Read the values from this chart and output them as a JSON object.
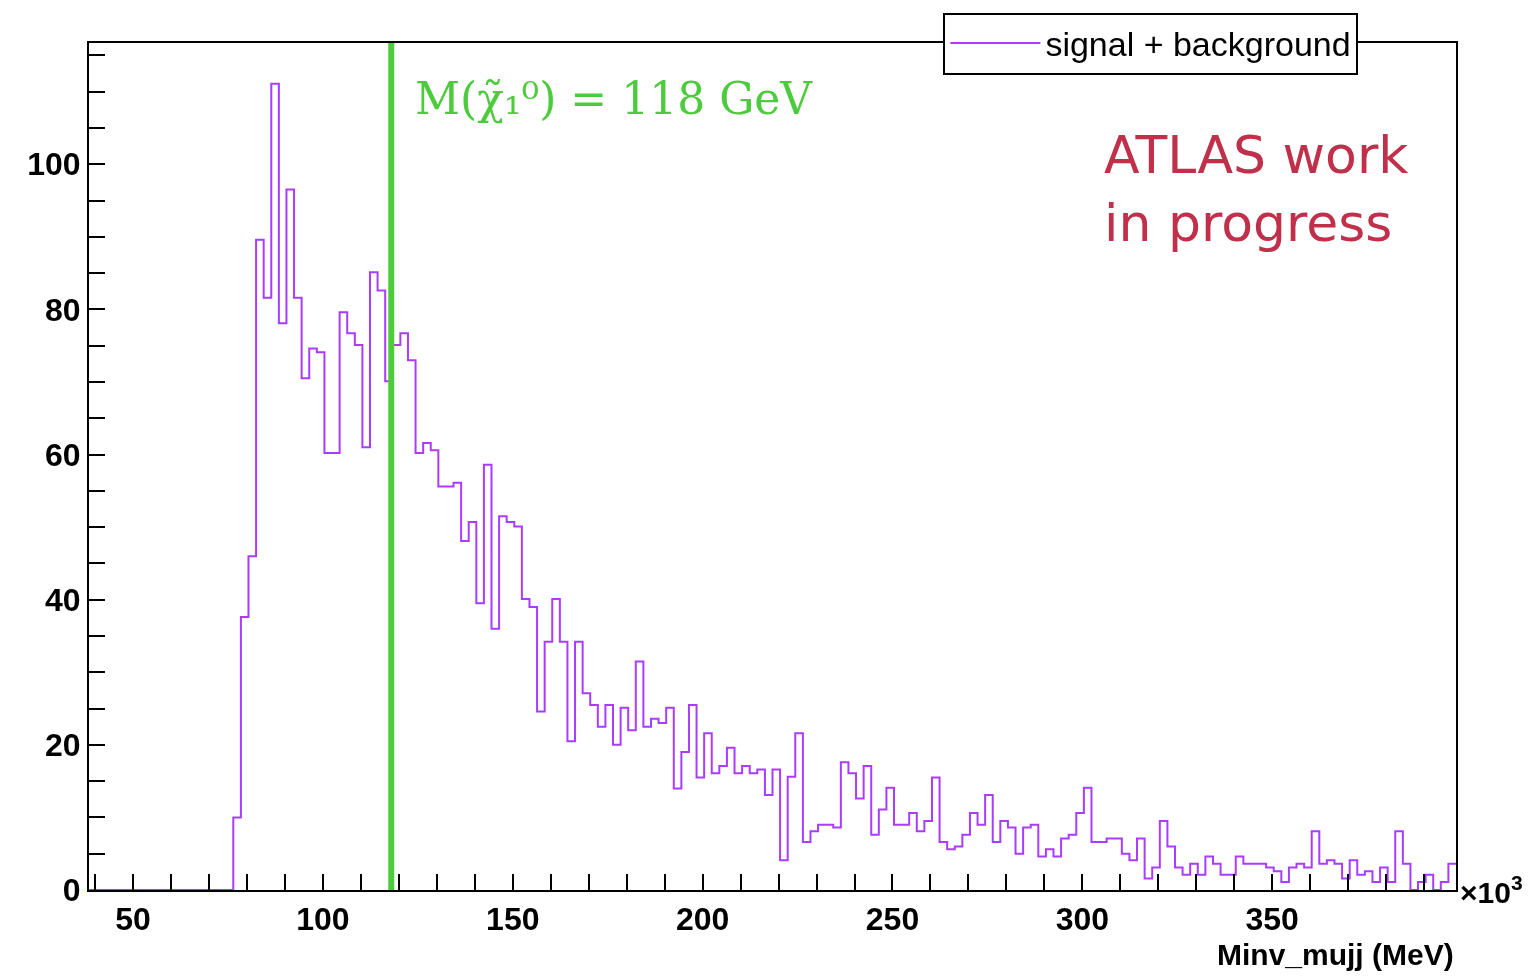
{
  "chart_data": {
    "type": "histogram",
    "xlabel": "Minv_mujj (MeV)",
    "bins": [
      38.4,
      40.4,
      42.4,
      44.4,
      46.4,
      48.4,
      50.4,
      52.4,
      54.4,
      56.4,
      58.4,
      60.4,
      62.4,
      64.4,
      66.4,
      68.4,
      70.4,
      72.4,
      74.4,
      76.4,
      78.4,
      80.4,
      82.4,
      84.4,
      86.4,
      88.4,
      90.4,
      92.4,
      94.4,
      96.4,
      98.4,
      100.4,
      102.4,
      104.4,
      106.4,
      108.4,
      110.4,
      112.4,
      114.4,
      116.4,
      118.4,
      120.4,
      122.4,
      124.4,
      126.4,
      128.4,
      130.4,
      132.4,
      134.4,
      136.4,
      138.4,
      140.4,
      142.4,
      144.4,
      146.4,
      148.4,
      150.4,
      152.4,
      154.4,
      156.4,
      158.4,
      160.4,
      162.4,
      164.4,
      166.4,
      168.4,
      170.4,
      172.4,
      174.4,
      176.4,
      178.4,
      180.4,
      182.4,
      184.4,
      186.4,
      188.4,
      190.4,
      192.4,
      194.4,
      196.4,
      198.4,
      200.4,
      202.4,
      204.4,
      206.4,
      208.4,
      210.4,
      212.4,
      214.4,
      216.4,
      218.4,
      220.4,
      222.4,
      224.4,
      226.4,
      228.4,
      230.4,
      232.4,
      234.4,
      236.4,
      238.4,
      240.4,
      242.4,
      244.4,
      246.4,
      248.4,
      250.4,
      252.4,
      254.4,
      256.4,
      258.4,
      260.4,
      262.4,
      264.4,
      266.4,
      268.4,
      270.4,
      272.4,
      274.4,
      276.4,
      278.4,
      280.4,
      282.4,
      284.4,
      286.4,
      288.4,
      290.4,
      292.4,
      294.4,
      296.4,
      298.4,
      300.4,
      302.4,
      304.4,
      306.4,
      308.4,
      310.4,
      312.4,
      314.4,
      316.4,
      318.4,
      320.4,
      322.4,
      324.4,
      326.4,
      328.4,
      330.4,
      332.4,
      334.4,
      336.4,
      338.4,
      340.4,
      342.4,
      344.4,
      346.4,
      348.4,
      350.4,
      352.4,
      354.4,
      356.4,
      358.4,
      360.4,
      362.4,
      364.4,
      366.4,
      368.4,
      370.4,
      372.4,
      374.4,
      376.4,
      378.4,
      380.4,
      382.4,
      384.4,
      386.4,
      388.4,
      390.4,
      392.4,
      394.4,
      396.4,
      398.4
    ],
    "series": [
      {
        "name": "signal + background",
        "color": "#a93cff",
        "values": [
          0,
          0,
          0,
          0,
          0,
          0,
          0,
          0,
          0,
          0,
          0,
          0,
          0,
          0,
          0,
          0,
          0,
          0,
          0,
          10.0,
          37.6,
          46.0,
          89.6,
          81.6,
          111.1,
          78.1,
          96.5,
          81.6,
          70.5,
          74.6,
          74.1,
          60.2,
          60.2,
          79.6,
          76.7,
          75.1,
          61.0,
          85.1,
          82.6,
          70.1,
          75.1,
          76.7,
          73.0,
          60.2,
          61.6,
          60.6,
          55.6,
          55.6,
          56.1,
          48.1,
          50.7,
          39.5,
          58.6,
          36.0,
          51.5,
          50.7,
          50.1,
          40.1,
          39.0,
          24.6,
          34.2,
          40.1,
          34.2,
          20.5,
          34.2,
          27.1,
          25.5,
          22.5,
          25.5,
          20.0,
          25.1,
          22.0,
          31.5,
          22.5,
          23.6,
          23.0,
          25.1,
          14.0,
          19.0,
          25.5,
          15.5,
          21.6,
          16.1,
          17.1,
          19.6,
          16.1,
          17.1,
          16.1,
          16.6,
          13.1,
          16.6,
          4.1,
          15.6,
          21.6,
          6.6,
          8.1,
          9.0,
          9.0,
          8.6,
          17.6,
          16.1,
          12.6,
          17.1,
          7.6,
          11.1,
          14.1,
          9.0,
          9.0,
          10.6,
          8.1,
          9.5,
          15.5,
          6.6,
          5.6,
          6.0,
          7.6,
          10.6,
          9.0,
          13.1,
          6.6,
          9.5,
          8.6,
          5.0,
          8.6,
          9.0,
          4.6,
          5.6,
          4.6,
          7.1,
          7.6,
          10.6,
          14.1,
          6.6,
          6.6,
          7.1,
          7.1,
          5.0,
          4.1,
          7.1,
          1.6,
          3.1,
          9.5,
          6.0,
          3.1,
          2.1,
          3.6,
          2.1,
          4.6,
          3.6,
          2.1,
          2.1,
          4.6,
          3.6,
          3.6,
          3.6,
          3.1,
          2.6,
          1.1,
          3.1,
          3.6,
          3.1,
          8.1,
          3.6,
          4.1,
          3.6,
          1.6,
          4.1,
          2.1,
          2.6,
          1.1,
          3.1,
          1.1,
          8.1,
          3.6,
          0,
          1.1,
          2.1,
          0,
          1.1,
          3.6
        ]
      }
    ],
    "xlim": [
      38.4,
      398.4
    ],
    "xticks": [
      {
        "value": 40,
        "label": null
      },
      50,
      {
        "value": 60,
        "label": null
      },
      {
        "value": 70,
        "label": null
      },
      {
        "value": 80,
        "label": null
      },
      {
        "value": 90,
        "label": null
      },
      100,
      {
        "value": 110,
        "label": null
      },
      {
        "value": 120,
        "label": null
      },
      {
        "value": 130,
        "label": null
      },
      {
        "value": 140,
        "label": null
      },
      150,
      {
        "value": 160,
        "label": null
      },
      {
        "value": 170,
        "label": null
      },
      {
        "value": 180,
        "label": null
      },
      {
        "value": 190,
        "label": null
      },
      200,
      {
        "value": 210,
        "label": null
      },
      {
        "value": 220,
        "label": null
      },
      {
        "value": 230,
        "label": null
      },
      {
        "value": 240,
        "label": null
      },
      250,
      {
        "value": 260,
        "label": null
      },
      {
        "value": 270,
        "label": null
      },
      {
        "value": 280,
        "label": null
      },
      {
        "value": 290,
        "label": null
      },
      300,
      {
        "value": 310,
        "label": null
      },
      {
        "value": 320,
        "label": null
      },
      {
        "value": 330,
        "label": null
      },
      {
        "value": 340,
        "label": null
      },
      350,
      {
        "value": 360,
        "label": null
      },
      {
        "value": 370,
        "label": null
      },
      {
        "value": 380,
        "label": null
      },
      {
        "value": 390,
        "label": null
      }
    ],
    "ylim": [
      0,
      116.7
    ],
    "yticks": [
      0,
      {
        "value": 5,
        "label": null
      },
      {
        "value": 10,
        "label": null
      },
      {
        "value": 15,
        "label": null
      },
      20,
      {
        "value": 25,
        "label": null
      },
      {
        "value": 30,
        "label": null
      },
      {
        "value": 35,
        "label": null
      },
      40,
      {
        "value": 45,
        "label": null
      },
      {
        "value": 50,
        "label": null
      },
      {
        "value": 55,
        "label": null
      },
      60,
      {
        "value": 65,
        "label": null
      },
      {
        "value": 70,
        "label": null
      },
      {
        "value": 75,
        "label": null
      },
      80,
      {
        "value": 85,
        "label": null
      },
      {
        "value": 90,
        "label": null
      },
      {
        "value": 95,
        "label": null
      },
      100,
      {
        "value": 105,
        "label": null
      },
      {
        "value": 110,
        "label": null
      },
      {
        "value": 115,
        "label": null
      }
    ],
    "ref_lines": [
      {
        "axis": "x",
        "value": 118,
        "label": "M(χ̃₁⁰) = 118 GeV",
        "color": "#4ccc3c"
      }
    ],
    "annotations": [
      "ATLAS work in progress",
      "×10$^{3}$"
    ],
    "legend": "top right",
    "marker": "none",
    "line_style": "solid",
    "grid": false
  }
}
